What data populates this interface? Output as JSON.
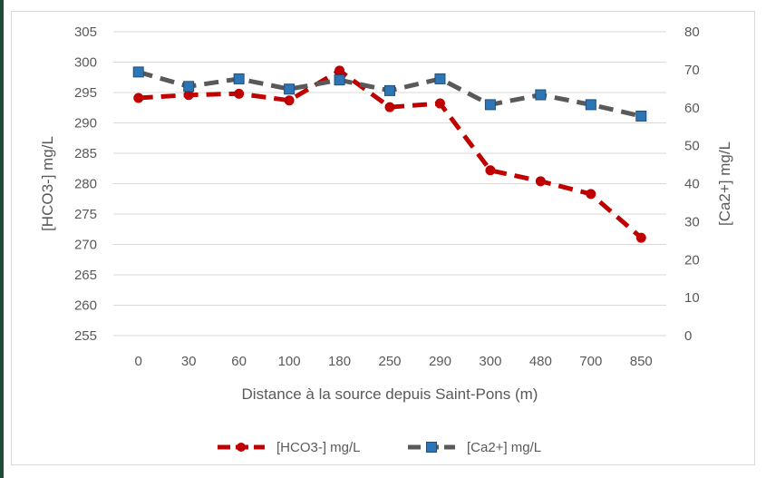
{
  "chart_data": {
    "type": "line",
    "title": "",
    "xlabel": "Distance à la source depuis Saint-Pons (m)",
    "ylabel": "[HCO3-] mg/L",
    "y2label": "[Ca2+] mg/L",
    "categories": [
      "0",
      "30",
      "60",
      "100",
      "180",
      "250",
      "290",
      "300",
      "480",
      "700",
      "850"
    ],
    "ylim": [
      255,
      305
    ],
    "y_ticks": [
      255,
      260,
      265,
      270,
      275,
      280,
      285,
      290,
      295,
      300,
      305
    ],
    "y2lim": [
      0,
      80
    ],
    "y2_ticks": [
      0,
      10,
      20,
      30,
      40,
      50,
      60,
      70,
      80
    ],
    "grid": true,
    "legend_position": "bottom",
    "series": [
      {
        "name": "[HCO3-] mg/L",
        "axis": "left",
        "color": "#C00000",
        "line_style": "dashed",
        "marker": "circle",
        "values": [
          294.1,
          294.6,
          294.8,
          293.7,
          298.6,
          292.6,
          293.2,
          282.2,
          280.4,
          278.3,
          271.1
        ]
      },
      {
        "name": "[Ca2+] mg/L",
        "axis": "right",
        "color": "#595959",
        "marker_color": "#2E75B6",
        "line_style": "dashed",
        "marker": "square",
        "values": [
          69.4,
          65.6,
          67.6,
          64.9,
          67.3,
          64.5,
          67.6,
          60.8,
          63.4,
          60.8,
          57.8
        ]
      }
    ]
  }
}
